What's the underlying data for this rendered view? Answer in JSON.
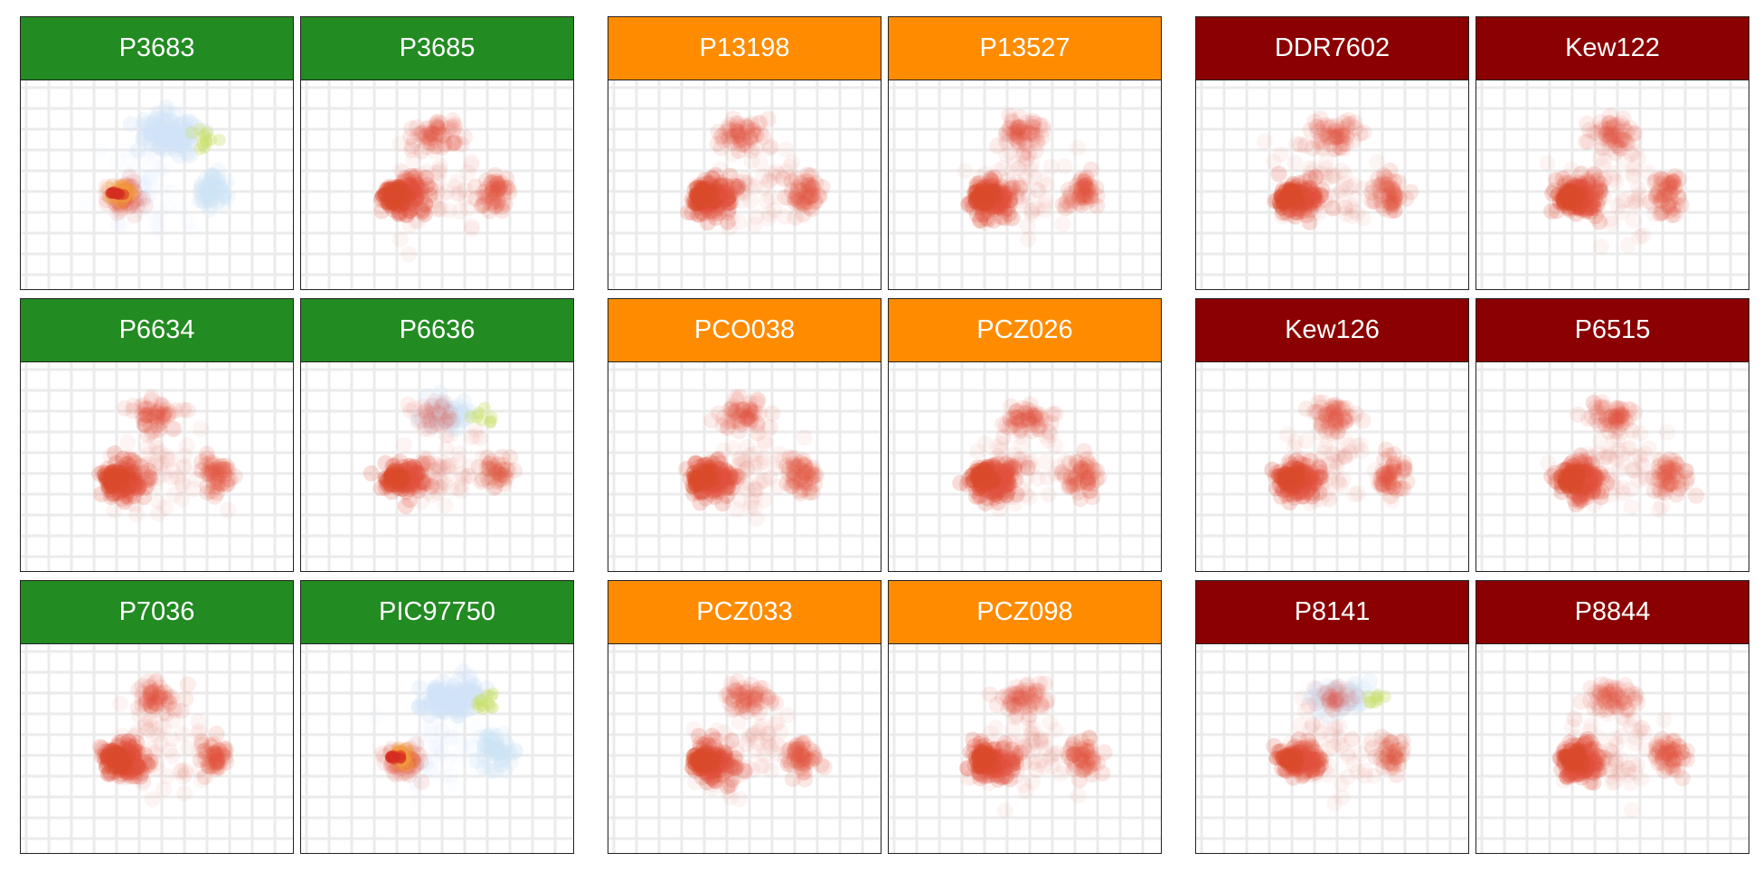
{
  "chart_data": {
    "type": "scatter",
    "layout": "faceted small multiples, 3 groups of 2 columns by 3 rows",
    "panel_legend_colors": {
      "background_dots": "#e1523d",
      "secondary_cloud": "#cfe3f7",
      "highlight": "#c8e06a"
    },
    "groups": [
      {
        "strip_color": "#228b22",
        "panels": [
          {
            "title": "P3683",
            "style": "blue"
          },
          {
            "title": "P3685",
            "style": "red"
          },
          {
            "title": "P6634",
            "style": "red"
          },
          {
            "title": "P6636",
            "style": "mixed"
          },
          {
            "title": "P7036",
            "style": "red"
          },
          {
            "title": "PIC97750",
            "style": "blue"
          }
        ]
      },
      {
        "strip_color": "#ff8c00",
        "panels": [
          {
            "title": "P13198",
            "style": "red"
          },
          {
            "title": "P13527",
            "style": "red"
          },
          {
            "title": "PCO038",
            "style": "red"
          },
          {
            "title": "PCZ026",
            "style": "red"
          },
          {
            "title": "PCZ033",
            "style": "red"
          },
          {
            "title": "PCZ098",
            "style": "red"
          }
        ]
      },
      {
        "strip_color": "#8b0000",
        "panels": [
          {
            "title": "DDR7602",
            "style": "red"
          },
          {
            "title": "Kew122",
            "style": "red"
          },
          {
            "title": "Kew126",
            "style": "red"
          },
          {
            "title": "P6515",
            "style": "red"
          },
          {
            "title": "P8141",
            "style": "mixed"
          },
          {
            "title": "P8844",
            "style": "red"
          }
        ]
      }
    ]
  }
}
